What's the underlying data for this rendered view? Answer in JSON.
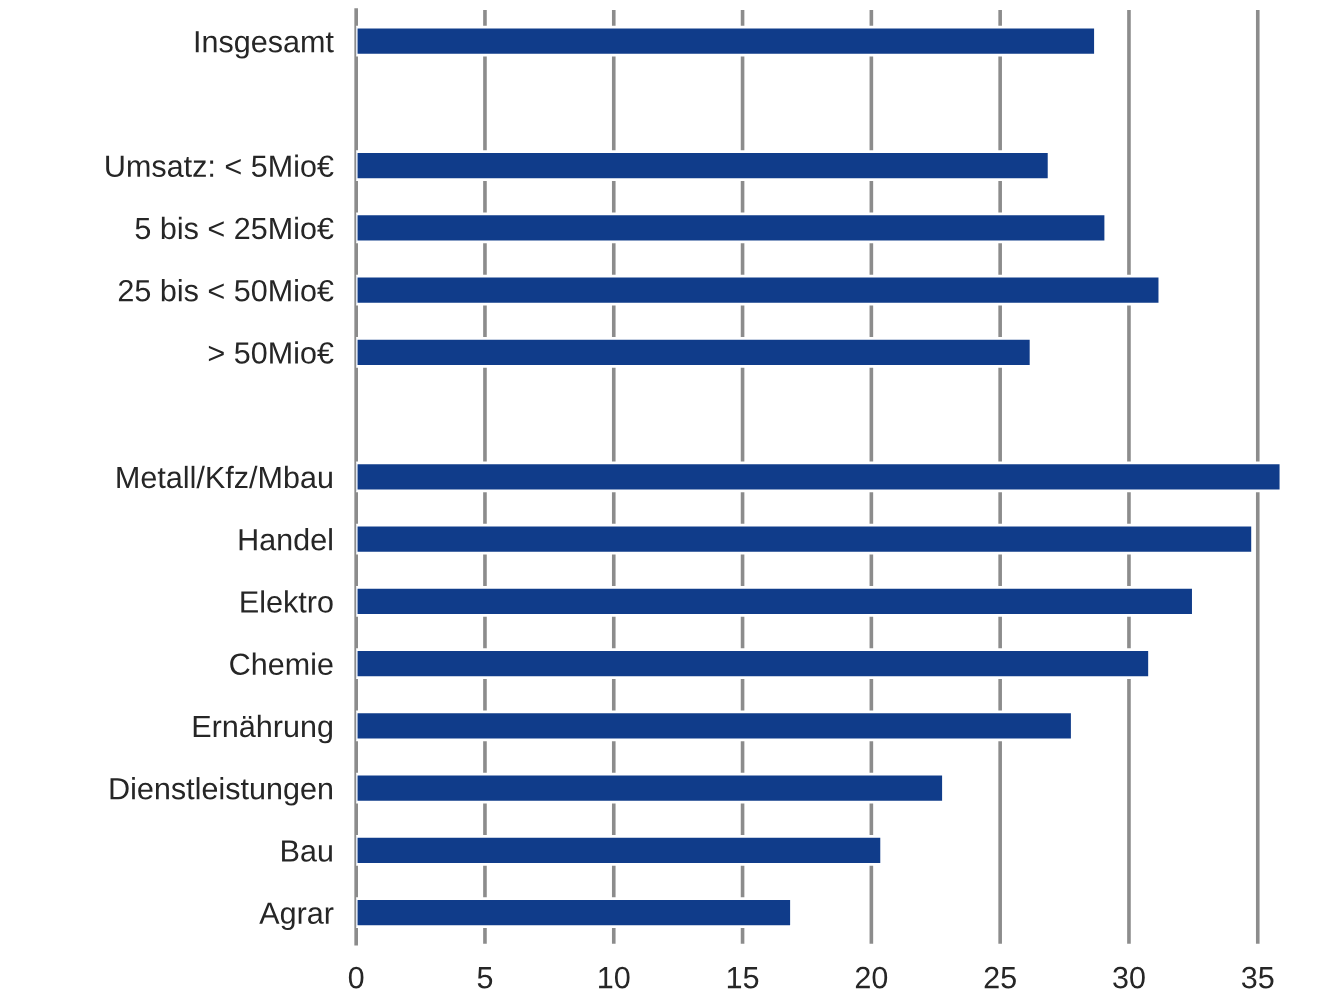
{
  "chart_data": {
    "type": "bar",
    "orientation": "horizontal",
    "categories": [
      "Insgesamt",
      null,
      "Umsatz: < 5Mio€",
      "5 bis < 25Mio€",
      "25 bis < 50Mio€",
      "> 50Mio€",
      null,
      "Metall/Kfz/Mbau",
      "Handel",
      "Elektro",
      "Chemie",
      "Ernährung",
      "Dienstleistungen",
      "Bau",
      "Agrar"
    ],
    "values": [
      28.7,
      null,
      26.9,
      29.1,
      31.2,
      26.2,
      null,
      35.9,
      34.8,
      32.5,
      30.8,
      27.8,
      22.8,
      20.4,
      16.9
    ],
    "color": "#103c8a",
    "xlim": [
      0,
      36
    ],
    "xticks": [
      0,
      5,
      10,
      15,
      20,
      25,
      30,
      35
    ],
    "grid": "x",
    "legend": false
  }
}
